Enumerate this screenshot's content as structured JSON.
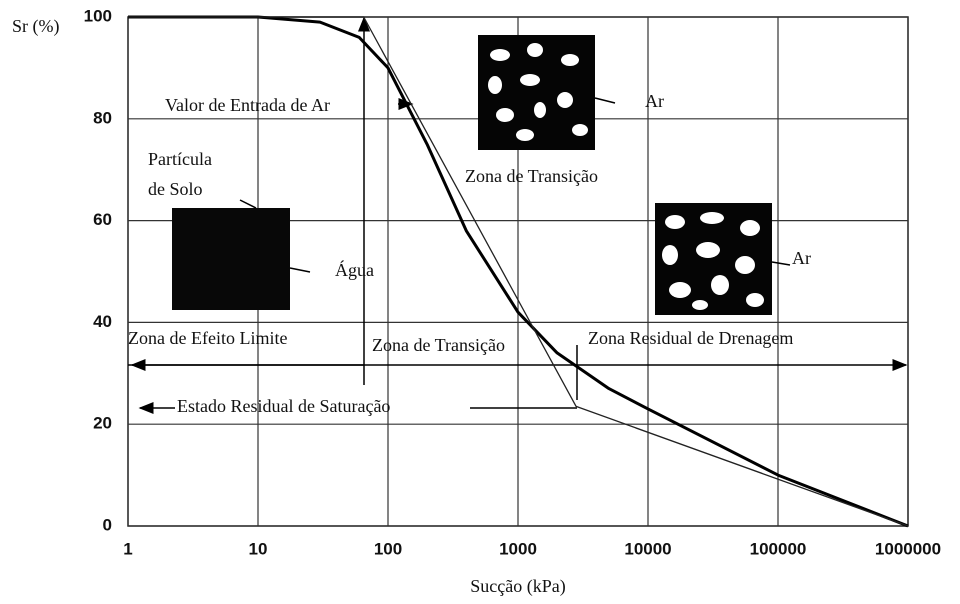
{
  "chart_data": {
    "type": "line",
    "x_scale": "log",
    "grid": true,
    "y_label": "Sr (%)",
    "x_label": "Sucção (kPa)",
    "xlim": [
      1,
      1000000
    ],
    "ylim": [
      0,
      100
    ],
    "xticks": [
      1,
      10,
      100,
      1000,
      10000,
      100000,
      1000000
    ],
    "yticks": [
      0,
      20,
      40,
      60,
      80,
      100
    ],
    "series": [
      {
        "color": "#000000",
        "x": [
          1,
          10,
          30,
          60,
          100,
          200,
          400,
          1000,
          2000,
          5000,
          10000,
          100000,
          1000000
        ],
        "values": [
          100,
          100,
          99,
          96,
          90,
          75,
          58,
          42,
          34,
          27,
          23,
          10,
          0
        ]
      },
      {
        "color": "#222222",
        "x": [
          1,
          65,
          2800,
          1000000
        ],
        "values": [
          100,
          100,
          23.5,
          0
        ]
      }
    ],
    "annotations": [
      "Valor de Entrada de Ar",
      "Ar",
      "Partícula",
      "de Solo",
      "Zona de Transição",
      "Água",
      "Ar",
      "Zona de Efeito Limite",
      "Zona de Transição",
      "Zona Residual de Drenagem",
      "Estado Residual de Saturação"
    ]
  }
}
